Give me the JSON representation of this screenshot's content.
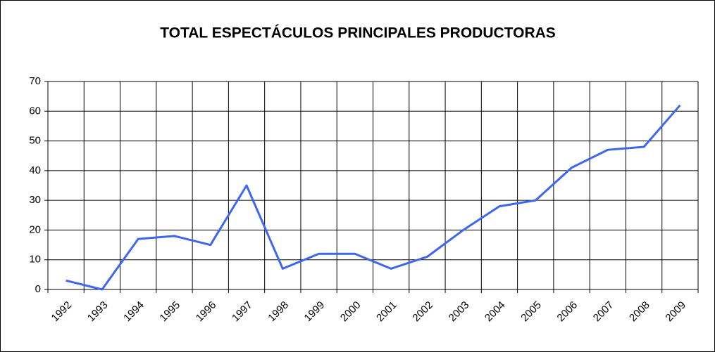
{
  "chart_data": {
    "type": "line",
    "title": "TOTAL ESPECTÁCULOS PRINCIPALES PRODUCTORAS",
    "categories": [
      "1992",
      "1993",
      "1994",
      "1995",
      "1996",
      "1997",
      "1998",
      "1999",
      "2000",
      "2001",
      "2002",
      "2003",
      "2004",
      "2005",
      "2006",
      "2007",
      "2008",
      "2009"
    ],
    "series": [
      {
        "name": "Total",
        "color": "#3f66ee",
        "values": [
          3,
          0,
          17,
          18,
          15,
          35,
          7,
          12,
          12,
          7,
          11,
          20,
          28,
          30,
          41,
          47,
          48,
          62
        ]
      }
    ],
    "ylim": [
      0,
      70
    ],
    "yticks": [
      0,
      10,
      20,
      30,
      40,
      50,
      60,
      70
    ],
    "grid": true,
    "legend": false
  }
}
